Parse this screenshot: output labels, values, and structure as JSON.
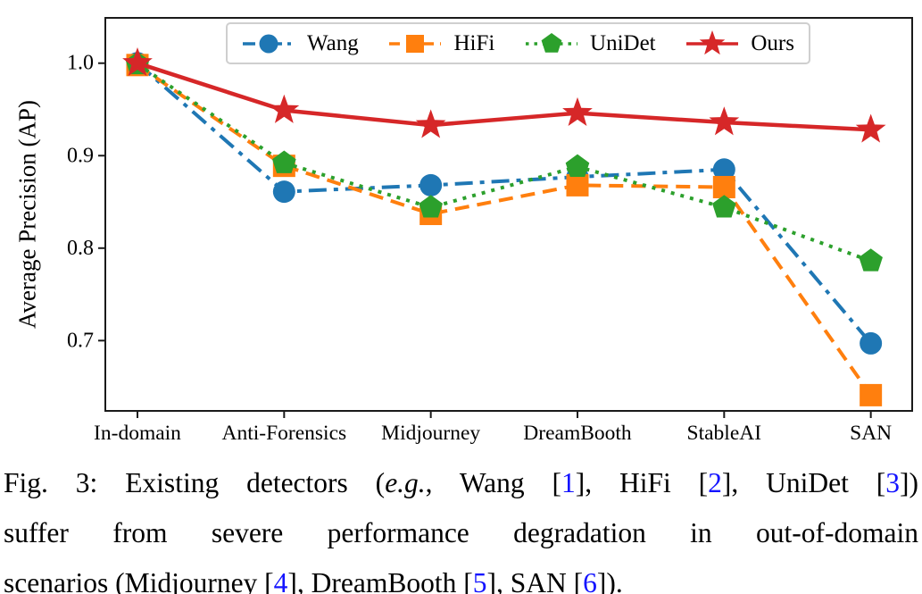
{
  "figure": {
    "cite_color": "#1414FF",
    "caption_lines": [
      {
        "justify": true,
        "segments": [
          {
            "t": "Fig. 3: Existing detectors ("
          },
          {
            "t": "e.g.",
            "style": "italic"
          },
          {
            "t": ", Wang ["
          },
          {
            "t": "1",
            "style": "cite"
          },
          {
            "t": "], HiFi ["
          },
          {
            "t": "2",
            "style": "cite"
          },
          {
            "t": "], UniDet ["
          },
          {
            "t": "3",
            "style": "cite"
          },
          {
            "t": "])"
          }
        ]
      },
      {
        "justify": true,
        "segments": [
          {
            "t": "suffer from severe performance degradation in out-of-domain"
          }
        ]
      },
      {
        "justify": false,
        "segments": [
          {
            "t": "scenarios (Midjourney ["
          },
          {
            "t": "4",
            "style": "cite"
          },
          {
            "t": "], DreamBooth ["
          },
          {
            "t": "5",
            "style": "cite"
          },
          {
            "t": "], SAN ["
          },
          {
            "t": "6",
            "style": "cite"
          },
          {
            "t": "])."
          }
        ]
      }
    ]
  },
  "chart_data": {
    "type": "line",
    "title": "",
    "xlabel": "",
    "ylabel": "Average Precision (AP)",
    "categories": [
      "In-domain",
      "Anti-Forensics",
      "Midjourney",
      "DreamBooth",
      "StableAI",
      "SAN"
    ],
    "yticks": [
      0.7,
      0.8,
      0.9,
      1.0
    ],
    "ylim": [
      0.624,
      1.049
    ],
    "grid": false,
    "legend_position": "top",
    "series": [
      {
        "name": "Wang",
        "color": "#1f77b4",
        "marker": "circle",
        "line": "dashdot",
        "values": [
          1.0,
          0.861,
          0.868,
          0.877,
          0.885,
          0.697
        ]
      },
      {
        "name": "HiFi",
        "color": "#ff7f0e",
        "marker": "square",
        "line": "dashed",
        "values": [
          0.998,
          0.889,
          0.837,
          0.868,
          0.866,
          0.641
        ]
      },
      {
        "name": "UniDet",
        "color": "#2ca02c",
        "marker": "pentagon",
        "line": "dotted",
        "values": [
          0.999,
          0.892,
          0.844,
          0.888,
          0.844,
          0.786
        ]
      },
      {
        "name": "Ours",
        "color": "#d62728",
        "marker": "star",
        "line": "solid",
        "values": [
          1.0,
          0.949,
          0.933,
          0.946,
          0.936,
          0.928
        ]
      }
    ]
  }
}
